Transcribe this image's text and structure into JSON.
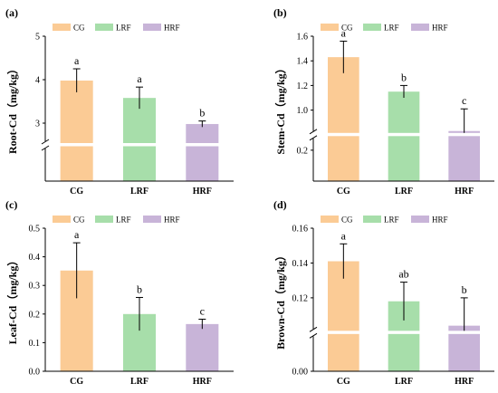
{
  "colors": {
    "CG": "#fbcb95",
    "LRF": "#a7deaa",
    "HRF": "#c8b4d8",
    "axis": "#000000",
    "error": "#000000"
  },
  "chart_data": [
    {
      "panel": "(a)",
      "type": "bar",
      "ylabel": "Root-Cd（mg/kg）",
      "categories": [
        "CG",
        "LRF",
        "HRF"
      ],
      "legend": [
        "CG",
        "LRF",
        "HRF"
      ],
      "legend_position": "top-left",
      "values": [
        3.98,
        3.58,
        2.98
      ],
      "errors": [
        0.27,
        0.25,
        0.07
      ],
      "significance": [
        "a",
        "a",
        "b"
      ],
      "axis_break": true,
      "lower_range": [
        0,
        0.5
      ],
      "upper_range": [
        2.5,
        5
      ],
      "lower_ticks": [],
      "upper_ticks": [
        3,
        4,
        5
      ],
      "grid": false
    },
    {
      "panel": "(b)",
      "type": "bar",
      "ylabel": "Stem-Cd（mg/kg）",
      "categories": [
        "CG",
        "LRF",
        "HRF"
      ],
      "legend": [
        "CG",
        "LRF",
        "HRF"
      ],
      "legend_position": "top-left",
      "values": [
        1.43,
        1.15,
        0.83
      ],
      "errors": [
        0.13,
        0.05,
        0.18
      ],
      "significance": [
        "a",
        "b",
        "c"
      ],
      "axis_break": true,
      "lower_range": [
        0,
        0.3
      ],
      "upper_range": [
        0.8,
        1.6
      ],
      "lower_ticks": [
        0.2
      ],
      "upper_ticks": [
        1.0,
        1.2,
        1.4,
        1.6
      ],
      "grid": false
    },
    {
      "panel": "(c)",
      "type": "bar",
      "ylabel": "Leaf-Cd（mg/kg）",
      "categories": [
        "CG",
        "LRF",
        "HRF"
      ],
      "legend": [
        "CG",
        "LRF",
        "HRF"
      ],
      "legend_position": "top-left",
      "values": [
        0.352,
        0.2,
        0.165
      ],
      "errors": [
        0.097,
        0.058,
        0.017
      ],
      "significance": [
        "a",
        "b",
        "c"
      ],
      "axis_break": false,
      "ylim": [
        0,
        0.5
      ],
      "ticks": [
        0.0,
        0.1,
        0.2,
        0.3,
        0.4,
        0.5
      ],
      "grid": false
    },
    {
      "panel": "(d)",
      "type": "bar",
      "ylabel": "Brown-Cd（mg/kg）",
      "categories": [
        "CG",
        "LRF",
        "HRF"
      ],
      "legend": [
        "CG",
        "LRF",
        "HRF"
      ],
      "legend_position": "top-left",
      "values": [
        0.141,
        0.118,
        0.104
      ],
      "errors": [
        0.01,
        0.011,
        0.016
      ],
      "significance": [
        "a",
        "ab",
        "b"
      ],
      "axis_break": true,
      "lower_range": [
        0,
        0.01
      ],
      "upper_range": [
        0.1,
        0.16
      ],
      "lower_ticks": [
        0.0
      ],
      "upper_ticks": [
        0.12,
        0.14,
        0.16
      ],
      "grid": false
    }
  ]
}
